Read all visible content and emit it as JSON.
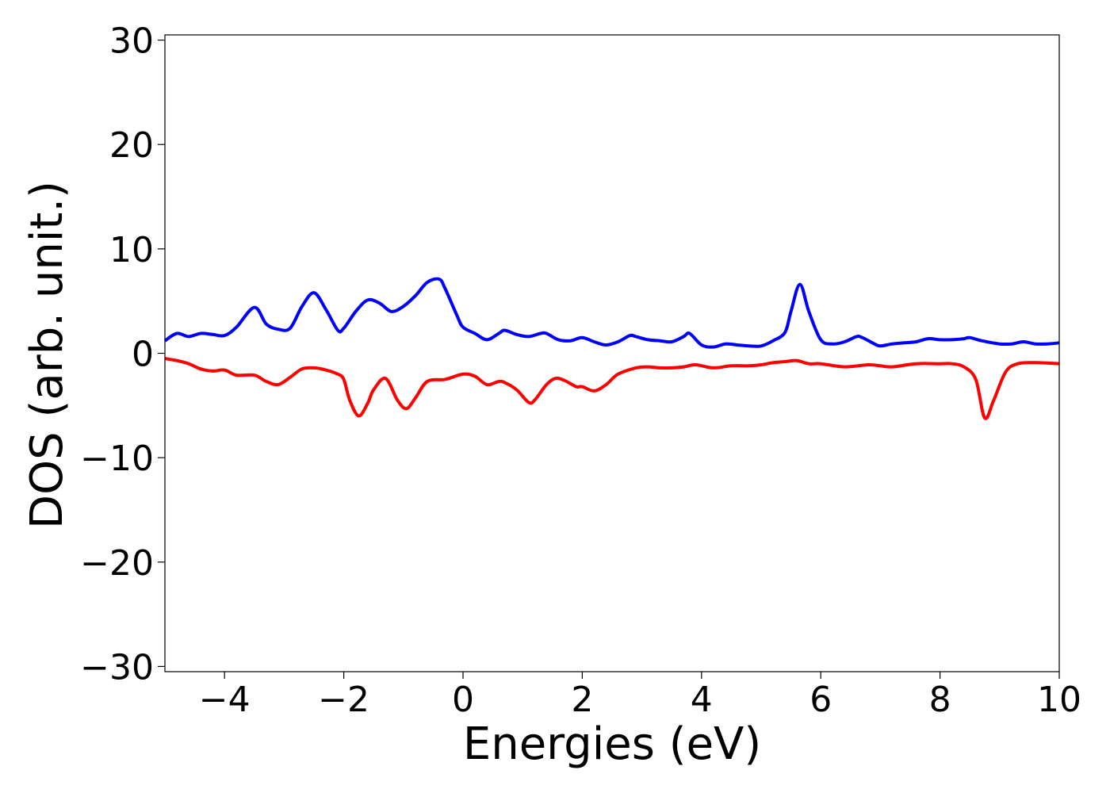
{
  "chart_data": {
    "type": "line",
    "title": "",
    "xlabel": "Energies (eV)",
    "ylabel": "DOS (arb. unit.)",
    "xlim": [
      -5,
      10
    ],
    "ylim": [
      -30.5,
      30.5
    ],
    "x_ticks": [
      -4,
      -2,
      0,
      2,
      4,
      6,
      8,
      10
    ],
    "x_tick_labels": [
      "−4",
      "−2",
      "0",
      "2",
      "4",
      "6",
      "8",
      "10"
    ],
    "y_ticks": [
      30,
      20,
      10,
      0,
      -10,
      -20,
      -30
    ],
    "y_tick_labels": [
      "30",
      "20",
      "10",
      "0",
      "−10",
      "−20",
      "−30"
    ],
    "grid": false,
    "legend": false,
    "series": [
      {
        "color": "#0000ff",
        "x": [
          -5.0,
          -4.8,
          -4.6,
          -4.4,
          -4.2,
          -4.0,
          -3.8,
          -3.5,
          -3.3,
          -3.1,
          -2.9,
          -2.7,
          -2.5,
          -2.3,
          -2.1,
          -2.0,
          -1.8,
          -1.6,
          -1.4,
          -1.2,
          -1.0,
          -0.8,
          -0.6,
          -0.4,
          -0.3,
          -0.1,
          0.0,
          0.2,
          0.4,
          0.6,
          0.7,
          0.9,
          1.1,
          1.3,
          1.4,
          1.6,
          1.8,
          2.0,
          2.2,
          2.4,
          2.6,
          2.8,
          2.9,
          3.1,
          3.3,
          3.5,
          3.7,
          3.8,
          4.0,
          4.2,
          4.4,
          4.6,
          4.8,
          5.0,
          5.2,
          5.4,
          5.5,
          5.65,
          5.8,
          6.0,
          6.2,
          6.4,
          6.6,
          6.7,
          6.9,
          7.0,
          7.2,
          7.4,
          7.6,
          7.8,
          8.0,
          8.2,
          8.4,
          8.5,
          8.7,
          9.0,
          9.2,
          9.4,
          9.6,
          9.8,
          10.0
        ],
        "y": [
          1.2,
          1.9,
          1.6,
          1.9,
          1.8,
          1.7,
          2.5,
          4.4,
          2.8,
          2.3,
          2.4,
          4.5,
          5.8,
          4.2,
          2.2,
          2.4,
          4.0,
          5.1,
          4.8,
          4.0,
          4.5,
          5.5,
          6.8,
          7.1,
          6.2,
          3.6,
          2.5,
          1.9,
          1.3,
          1.9,
          2.2,
          1.8,
          1.6,
          1.9,
          1.9,
          1.3,
          1.2,
          1.5,
          1.1,
          0.8,
          1.1,
          1.7,
          1.6,
          1.3,
          1.2,
          1.1,
          1.6,
          1.9,
          0.8,
          0.6,
          0.9,
          0.8,
          0.7,
          0.7,
          1.2,
          2.0,
          4.0,
          6.6,
          4.0,
          1.3,
          0.9,
          1.1,
          1.6,
          1.5,
          0.9,
          0.7,
          0.9,
          1.0,
          1.1,
          1.4,
          1.3,
          1.3,
          1.4,
          1.5,
          1.2,
          0.9,
          0.9,
          1.1,
          0.9,
          0.9,
          1.0
        ]
      },
      {
        "color": "#ff0000",
        "x": [
          -5.0,
          -4.8,
          -4.6,
          -4.4,
          -4.2,
          -4.0,
          -3.8,
          -3.5,
          -3.3,
          -3.1,
          -2.9,
          -2.7,
          -2.5,
          -2.3,
          -2.1,
          -2.0,
          -1.9,
          -1.75,
          -1.6,
          -1.5,
          -1.3,
          -1.1,
          -0.95,
          -0.8,
          -0.6,
          -0.3,
          0.0,
          0.2,
          0.4,
          0.6,
          0.7,
          0.9,
          1.1,
          1.2,
          1.4,
          1.55,
          1.7,
          1.9,
          2.0,
          2.2,
          2.4,
          2.6,
          2.9,
          3.1,
          3.3,
          3.5,
          3.7,
          3.9,
          4.2,
          4.5,
          4.8,
          5.0,
          5.2,
          5.4,
          5.6,
          5.8,
          6.0,
          6.4,
          6.8,
          7.0,
          7.2,
          7.6,
          8.0,
          8.2,
          8.4,
          8.6,
          8.75,
          8.9,
          9.1,
          9.3,
          9.6,
          10.0
        ],
        "y": [
          -0.5,
          -0.7,
          -1.0,
          -1.5,
          -1.7,
          -1.6,
          -2.1,
          -2.1,
          -2.7,
          -3.0,
          -2.3,
          -1.5,
          -1.4,
          -1.6,
          -2.0,
          -2.5,
          -4.5,
          -6.0,
          -4.8,
          -3.5,
          -2.4,
          -4.5,
          -5.3,
          -4.3,
          -2.7,
          -2.5,
          -2.0,
          -2.2,
          -3.0,
          -2.7,
          -2.8,
          -3.5,
          -4.7,
          -4.5,
          -3.0,
          -2.4,
          -2.6,
          -3.2,
          -3.2,
          -3.6,
          -3.0,
          -2.0,
          -1.4,
          -1.3,
          -1.4,
          -1.4,
          -1.3,
          -1.1,
          -1.4,
          -1.2,
          -1.2,
          -1.1,
          -0.9,
          -0.8,
          -0.7,
          -1.0,
          -1.0,
          -1.3,
          -1.1,
          -1.2,
          -1.3,
          -1.0,
          -1.0,
          -1.0,
          -1.3,
          -2.5,
          -6.2,
          -4.5,
          -1.8,
          -1.0,
          -0.9,
          -1.0
        ]
      }
    ]
  }
}
